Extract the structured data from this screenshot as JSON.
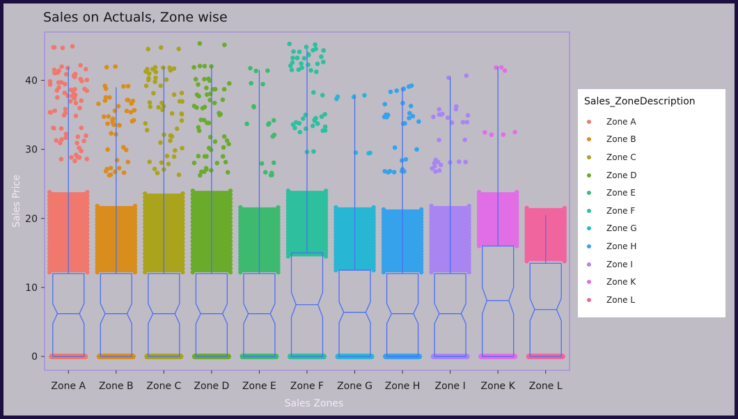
{
  "chart_data": {
    "type": "box",
    "title": "Sales on Actuals, Zone wise",
    "xlabel": "Sales Zones",
    "ylabel": "Sales Price",
    "ylim": [
      -2,
      47
    ],
    "yticks": [
      0,
      10,
      20,
      30,
      40
    ],
    "legend_title": "Sales_ZoneDescription",
    "legend_position": "right",
    "grid": false,
    "categories": [
      "Zone A",
      "Zone B",
      "Zone C",
      "Zone D",
      "Zone E",
      "Zone F",
      "Zone G",
      "Zone H",
      "Zone I",
      "Zone K",
      "Zone L"
    ],
    "colors": [
      "#f0786c",
      "#d98d1c",
      "#aaa31c",
      "#6aab2c",
      "#3dba70",
      "#2dbf9e",
      "#27b7d4",
      "#36a2ec",
      "#a985f2",
      "#e26ee5",
      "#f1659f"
    ],
    "boxes": [
      {
        "zone": "Zone A",
        "min": 0,
        "q1": 0,
        "median": 6.2,
        "q3": 12,
        "whisker_high": 42
      },
      {
        "zone": "Zone B",
        "min": 0,
        "q1": 0,
        "median": 6.2,
        "q3": 12,
        "whisker_high": 39
      },
      {
        "zone": "Zone C",
        "min": 0,
        "q1": 0,
        "median": 6.2,
        "q3": 12,
        "whisker_high": 42
      },
      {
        "zone": "Zone D",
        "min": 0,
        "q1": 0,
        "median": 6.2,
        "q3": 12,
        "whisker_high": 42
      },
      {
        "zone": "Zone E",
        "min": 0,
        "q1": 0,
        "median": 6.2,
        "q3": 12,
        "whisker_high": 41.5
      },
      {
        "zone": "Zone F",
        "min": 0,
        "q1": 0,
        "median": 7.5,
        "q3": 15,
        "whisker_high": 44.5
      },
      {
        "zone": "Zone G",
        "min": 0,
        "q1": 0,
        "median": 6.4,
        "q3": 12.5,
        "whisker_high": 38
      },
      {
        "zone": "Zone H",
        "min": 0,
        "q1": 0,
        "median": 6.2,
        "q3": 12,
        "whisker_high": 39
      },
      {
        "zone": "Zone I",
        "min": 0,
        "q1": 0,
        "median": 6.2,
        "q3": 12,
        "whisker_high": 40.5
      },
      {
        "zone": "Zone K",
        "min": 0,
        "q1": 0,
        "median": 8.1,
        "q3": 16,
        "whisker_high": 42
      },
      {
        "zone": "Zone L",
        "min": 0,
        "q1": 0,
        "median": 6.8,
        "q3": 13.5,
        "whisker_high": 20.5
      }
    ],
    "points": [
      {
        "zone": "Zone A",
        "dense_min": 12.2,
        "dense_max": 23.8,
        "scatter": [
          28.5,
          29,
          30,
          31,
          31.5,
          32,
          33,
          35,
          35.5,
          36,
          37,
          37.5,
          38,
          38.5,
          39,
          39.5,
          40,
          40.5,
          41,
          41.5,
          42,
          45
        ],
        "floor": 0
      },
      {
        "zone": "Zone B",
        "dense_min": 12.2,
        "dense_max": 21.8,
        "scatter": [
          26.5,
          27,
          28.3,
          30.2,
          32.2,
          33.6,
          34,
          34.5,
          35.5,
          36.5,
          37,
          37.3,
          39,
          42
        ],
        "floor": 0
      },
      {
        "zone": "Zone C",
        "dense_min": 12.2,
        "dense_max": 23.6,
        "scatter": [
          26.5,
          27,
          28,
          29,
          30,
          31,
          32,
          33,
          34,
          35,
          36,
          37,
          38,
          39,
          40,
          40.5,
          41,
          41.5,
          42,
          44.8
        ],
        "floor": 0
      },
      {
        "zone": "Zone D",
        "dense_min": 12.2,
        "dense_max": 24.0,
        "scatter": [
          26.5,
          27,
          28,
          29,
          30,
          31,
          32,
          33,
          34,
          35,
          36,
          37,
          38,
          39,
          39.5,
          40,
          42,
          45.3
        ],
        "floor": 0
      },
      {
        "zone": "Zone E",
        "dense_min": 12.2,
        "dense_max": 21.6,
        "scatter": [
          26.5,
          28,
          32,
          33.9,
          36,
          39.5,
          41.5
        ],
        "floor": 0
      },
      {
        "zone": "Zone F",
        "dense_min": 14.5,
        "dense_max": 24.0,
        "scatter": [
          29.5,
          32.5,
          33,
          33.5,
          34,
          34.5,
          35,
          38,
          41.5,
          42,
          42.5,
          43,
          43.5,
          44,
          44.5,
          45
        ],
        "floor": 0
      },
      {
        "zone": "Zone G",
        "dense_min": 12.5,
        "dense_max": 21.6,
        "scatter": [
          29.3,
          37.6
        ],
        "floor": 0
      },
      {
        "zone": "Zone H",
        "dense_min": 12.2,
        "dense_max": 21.3,
        "scatter": [
          26.5,
          26.9,
          27,
          28.5,
          30.2,
          34,
          34.8,
          35,
          36.5,
          38.3,
          39
        ],
        "floor": 0
      },
      {
        "zone": "Zone I",
        "dense_min": 12.2,
        "dense_max": 21.8,
        "scatter": [
          26.8,
          27.5,
          28,
          28.3,
          31.4,
          34,
          34.6,
          35,
          36,
          40.5
        ],
        "floor": 0
      },
      {
        "zone": "Zone K",
        "dense_min": 16.0,
        "dense_max": 23.8,
        "scatter": [
          32.3,
          41.7
        ],
        "floor": 0
      },
      {
        "zone": "Zone L",
        "dense_min": 13.8,
        "dense_max": 21.5,
        "scatter": [],
        "floor": 0
      }
    ]
  }
}
